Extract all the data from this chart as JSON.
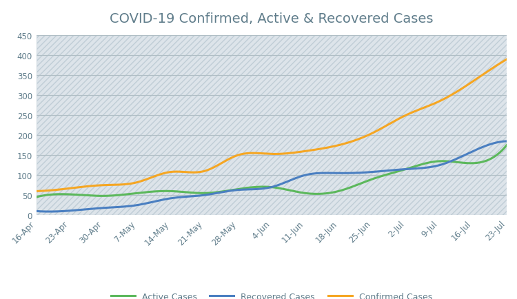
{
  "title": "COVID-19 Confirmed, Active & Recovered Cases",
  "title_color": "#607d8b",
  "background_color": "#ffffff",
  "plot_bg_color": "#dde4ea",
  "hatch_pattern": "////",
  "x_labels": [
    "16-Apr",
    "23-Apr",
    "30-Apr",
    "7-May",
    "14-May",
    "21-May",
    "28-May",
    "4-Jun",
    "11-Jun",
    "18-Jun",
    "25-Jun",
    "2-Jul",
    "9-Jul",
    "16-Jul",
    "23-Jul"
  ],
  "ylim": [
    0,
    450
  ],
  "yticks": [
    0,
    50,
    100,
    150,
    200,
    250,
    300,
    350,
    400,
    450
  ],
  "confirmed": [
    60,
    67,
    75,
    82,
    108,
    110,
    150,
    153,
    160,
    175,
    205,
    250,
    285,
    335,
    390
  ],
  "active": [
    45,
    52,
    48,
    55,
    60,
    55,
    65,
    70,
    55,
    60,
    90,
    115,
    135,
    130,
    175
  ],
  "recovered": [
    10,
    11,
    18,
    25,
    42,
    50,
    63,
    70,
    100,
    105,
    108,
    115,
    125,
    160,
    185
  ],
  "confirmed_color": "#f5a623",
  "active_color": "#5cb85c",
  "recovered_color": "#4a7fc1",
  "legend_labels": [
    "Active Cases",
    "Recovered Cases",
    "Confirmed Cases"
  ],
  "grid_color": "#b0bec5",
  "tick_color": "#607d8b",
  "line_width": 2.2,
  "title_fontsize": 14,
  "tick_fontsize": 8.5
}
